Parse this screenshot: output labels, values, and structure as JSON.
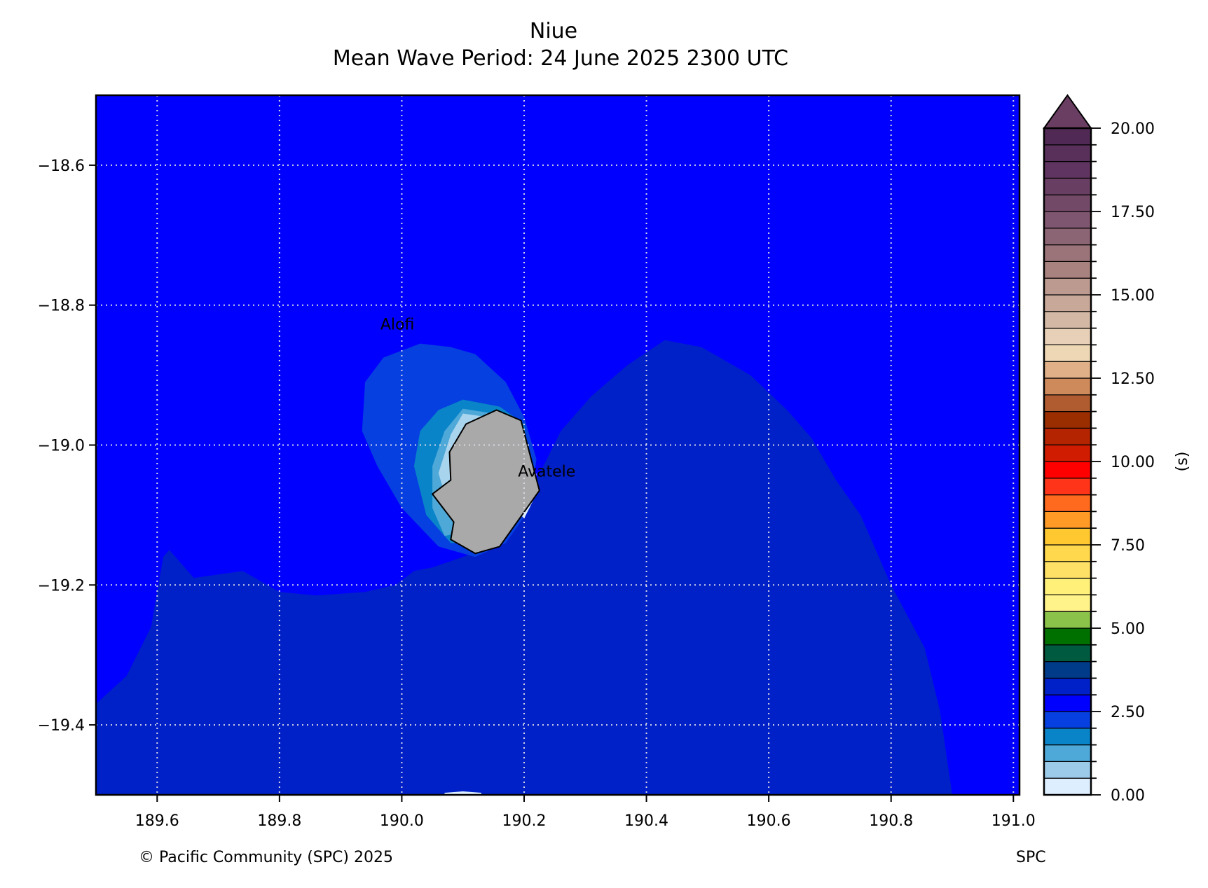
{
  "title": "Niue",
  "subtitle": "Mean Wave Period: 24 June 2025  2300 UTC",
  "map": {
    "lon_range": [
      189.5,
      191.01
    ],
    "lat_range": [
      -19.5,
      -18.5
    ],
    "lon_ticks": [
      {
        "value": 189.6,
        "label": "189.6"
      },
      {
        "value": 189.8,
        "label": "189.8"
      },
      {
        "value": 190.0,
        "label": "190.0"
      },
      {
        "value": 190.2,
        "label": "190.2"
      },
      {
        "value": 190.4,
        "label": "190.4"
      },
      {
        "value": 190.6,
        "label": "190.6"
      },
      {
        "value": 190.8,
        "label": "190.8"
      },
      {
        "value": 191.0,
        "label": "191.0"
      }
    ],
    "lat_ticks": [
      {
        "value": -18.6,
        "label": "−18.6"
      },
      {
        "value": -18.8,
        "label": "−18.8"
      },
      {
        "value": -19.0,
        "label": "−19.0"
      },
      {
        "value": -19.2,
        "label": "−19.2"
      },
      {
        "value": -19.4,
        "label": "−19.4"
      }
    ],
    "grid": true,
    "background_color": "#0000ff",
    "places": [
      {
        "name": "Alofi",
        "lon": 189.965,
        "lat": -18.835
      },
      {
        "name": "Avatele",
        "lon": 190.19,
        "lat": -19.045
      }
    ],
    "regions": [
      {
        "name": "period-3.0-3.5",
        "color": "#0020c8",
        "points": [
          [
            189.5,
            -19.37
          ],
          [
            189.55,
            -19.33
          ],
          [
            189.59,
            -19.26
          ],
          [
            189.61,
            -19.16
          ],
          [
            189.62,
            -19.15
          ],
          [
            189.66,
            -19.19
          ],
          [
            189.74,
            -19.18
          ],
          [
            189.8,
            -19.21
          ],
          [
            189.86,
            -19.215
          ],
          [
            189.94,
            -19.21
          ],
          [
            189.99,
            -19.2
          ],
          [
            190.02,
            -19.18
          ],
          [
            190.05,
            -19.175
          ],
          [
            190.1,
            -19.16
          ],
          [
            190.16,
            -19.14
          ],
          [
            190.22,
            -19.05
          ],
          [
            190.26,
            -18.98
          ],
          [
            190.31,
            -18.93
          ],
          [
            190.37,
            -18.885
          ],
          [
            190.43,
            -18.85
          ],
          [
            190.49,
            -18.86
          ],
          [
            190.57,
            -18.9
          ],
          [
            190.63,
            -18.95
          ],
          [
            190.67,
            -18.99
          ],
          [
            190.71,
            -19.05
          ],
          [
            190.75,
            -19.1
          ],
          [
            190.8,
            -19.2
          ],
          [
            190.855,
            -19.29
          ],
          [
            190.88,
            -19.38
          ],
          [
            190.9,
            -19.5
          ],
          [
            189.5,
            -19.5
          ]
        ]
      },
      {
        "name": "period-2.0-2.5",
        "color": "#0640e0",
        "points": [
          [
            190.03,
            -18.855
          ],
          [
            190.08,
            -18.86
          ],
          [
            190.12,
            -18.87
          ],
          [
            190.17,
            -18.91
          ],
          [
            190.2,
            -18.96
          ],
          [
            190.22,
            -19.02
          ],
          [
            190.21,
            -19.09
          ],
          [
            190.17,
            -19.14
          ],
          [
            190.12,
            -19.16
          ],
          [
            190.06,
            -19.145
          ],
          [
            190.0,
            -19.09
          ],
          [
            189.96,
            -19.03
          ],
          [
            189.935,
            -18.98
          ],
          [
            189.94,
            -18.91
          ],
          [
            189.97,
            -18.875
          ]
        ]
      },
      {
        "name": "period-1.5-2.0",
        "color": "#0a84c8",
        "points": [
          [
            190.1,
            -18.935
          ],
          [
            190.16,
            -18.945
          ],
          [
            190.2,
            -18.97
          ],
          [
            190.21,
            -19.03
          ],
          [
            190.19,
            -19.09
          ],
          [
            190.14,
            -19.14
          ],
          [
            190.08,
            -19.14
          ],
          [
            190.04,
            -19.1
          ],
          [
            190.02,
            -19.03
          ],
          [
            190.03,
            -18.98
          ],
          [
            190.06,
            -18.95
          ]
        ]
      },
      {
        "name": "period-1.0-1.5",
        "color": "#4ea8d8",
        "points": [
          [
            190.1,
            -18.948
          ],
          [
            190.15,
            -18.955
          ],
          [
            190.18,
            -18.98
          ],
          [
            190.17,
            -19.05
          ],
          [
            190.12,
            -19.12
          ],
          [
            190.07,
            -19.13
          ],
          [
            190.05,
            -19.09
          ],
          [
            190.05,
            -19.03
          ],
          [
            190.07,
            -18.98
          ]
        ]
      },
      {
        "name": "period-0.5-1.0",
        "color": "#a8d4ee",
        "points": [
          [
            190.1,
            -18.955
          ],
          [
            190.14,
            -18.96
          ],
          [
            190.12,
            -19.04
          ],
          [
            190.07,
            -19.07
          ],
          [
            190.06,
            -19.04
          ],
          [
            190.08,
            -18.985
          ]
        ]
      },
      {
        "name": "period-0.0-0.5",
        "color": "#ddeeff",
        "points": [
          [
            190.185,
            -19.09
          ],
          [
            190.2,
            -19.07
          ],
          [
            190.22,
            -19.04
          ],
          [
            190.22,
            -19.07
          ],
          [
            190.2,
            -19.105
          ]
        ]
      },
      {
        "name": "period-0.0-0.5-south",
        "color": "#ddeeff",
        "points": [
          [
            190.07,
            -19.497
          ],
          [
            190.1,
            -19.495
          ],
          [
            190.13,
            -19.497
          ],
          [
            190.13,
            -19.5
          ],
          [
            190.07,
            -19.5
          ]
        ]
      }
    ],
    "island": {
      "name": "Niue",
      "color": "#a9a9a9",
      "points": [
        [
          190.155,
          -18.95
        ],
        [
          190.195,
          -18.965
        ],
        [
          190.225,
          -19.065
        ],
        [
          190.16,
          -19.145
        ],
        [
          190.12,
          -19.155
        ],
        [
          190.08,
          -19.135
        ],
        [
          190.085,
          -19.11
        ],
        [
          190.05,
          -19.07
        ],
        [
          190.08,
          -19.05
        ],
        [
          190.078,
          -19.01
        ],
        [
          190.105,
          -18.97
        ]
      ]
    }
  },
  "colorbar": {
    "unit_label": "(s)",
    "min": 0,
    "max": 20,
    "step": 0.5,
    "tick_labels": [
      {
        "value": 0,
        "label": "0.00"
      },
      {
        "value": 2.5,
        "label": "2.50"
      },
      {
        "value": 5,
        "label": "5.00"
      },
      {
        "value": 7.5,
        "label": "7.50"
      },
      {
        "value": 10,
        "label": "10.00"
      },
      {
        "value": 12.5,
        "label": "12.50"
      },
      {
        "value": 15,
        "label": "15.00"
      },
      {
        "value": 17.5,
        "label": "17.50"
      },
      {
        "value": 20,
        "label": "20.00"
      }
    ],
    "colors": [
      "#ddeeff",
      "#9ccbe9",
      "#4ea8d8",
      "#0a84c8",
      "#0640e0",
      "#0000ff",
      "#0020c8",
      "#003b8a",
      "#005a40",
      "#007000",
      "#8bc34a",
      "#fff38a",
      "#fff07a",
      "#ffe066",
      "#ffd84d",
      "#ffc830",
      "#ff9a26",
      "#ff6a1e",
      "#ff3418",
      "#ff0000",
      "#d01c00",
      "#b52400",
      "#9a2e00",
      "#b05c30",
      "#cf8a5c",
      "#e0b088",
      "#eed7b5",
      "#e8d0b8",
      "#d4b8a6",
      "#c8a898",
      "#bc9a90",
      "#a8827e",
      "#9a7478",
      "#8c6574",
      "#7f5670",
      "#724a68",
      "#683e62",
      "#603460",
      "#58305a",
      "#502a55"
    ],
    "extend_color": "#6a3e62"
  },
  "footer": {
    "left": "© Pacific Community (SPC) 2025",
    "right": "SPC"
  }
}
